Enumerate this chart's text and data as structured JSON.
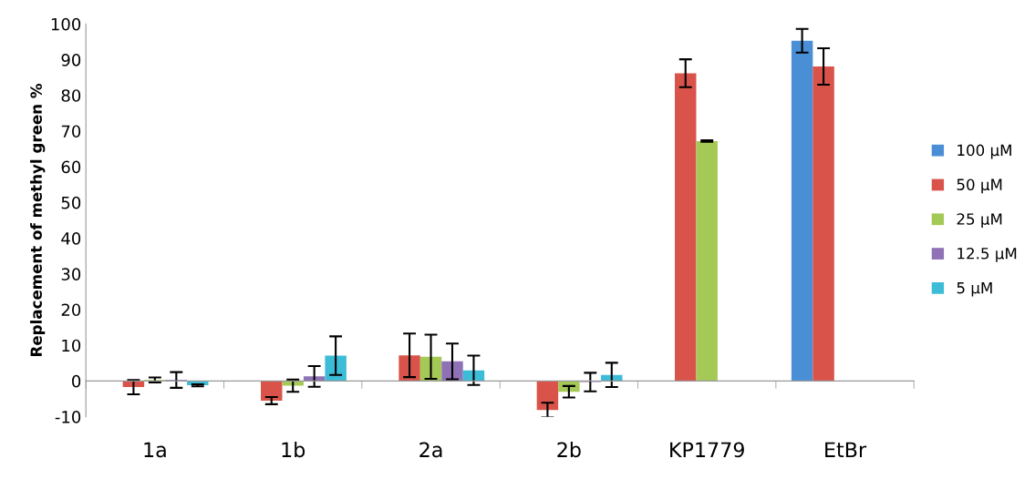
{
  "chart_data": {
    "type": "bar",
    "ylabel": "Replacement of methyl green %",
    "categories": [
      "1a",
      "1b",
      "2a",
      "2b",
      "KP1779",
      "EtBr"
    ],
    "series": [
      {
        "name": "100 µM",
        "color": "#4a8fd6",
        "values": [
          null,
          null,
          null,
          null,
          null,
          95.3
        ],
        "errors": [
          null,
          null,
          null,
          null,
          null,
          3.3
        ]
      },
      {
        "name": "50 µM",
        "color": "#d9534a",
        "values": [
          -1.7,
          -5.5,
          7.2,
          -8.1,
          86.2,
          88.1
        ],
        "errors": [
          2,
          1,
          6.1,
          2,
          3.9,
          5.1
        ]
      },
      {
        "name": "25 µM",
        "color": "#a5c957",
        "values": [
          0.3,
          -1.3,
          6.8,
          -3,
          67.2,
          null
        ],
        "errors": [
          0.7,
          1.7,
          6.2,
          1.6,
          0.2,
          null
        ]
      },
      {
        "name": "12.5 µM",
        "color": "#8e72b5",
        "values": [
          0.3,
          1.3,
          5.5,
          -0.3,
          null,
          null
        ],
        "errors": [
          2.2,
          2.9,
          5,
          2.6,
          null,
          null
        ]
      },
      {
        "name": "5 µM",
        "color": "#3dbcd8",
        "values": [
          -1.2,
          7.1,
          3,
          1.7,
          null,
          null
        ],
        "errors": [
          0.3,
          5.4,
          4.1,
          3.4,
          null,
          null
        ]
      }
    ],
    "ylim": [
      -10,
      100
    ],
    "yticks": [
      -10,
      0,
      10,
      20,
      30,
      40,
      50,
      60,
      70,
      80,
      90,
      100
    ],
    "legend": "right"
  }
}
